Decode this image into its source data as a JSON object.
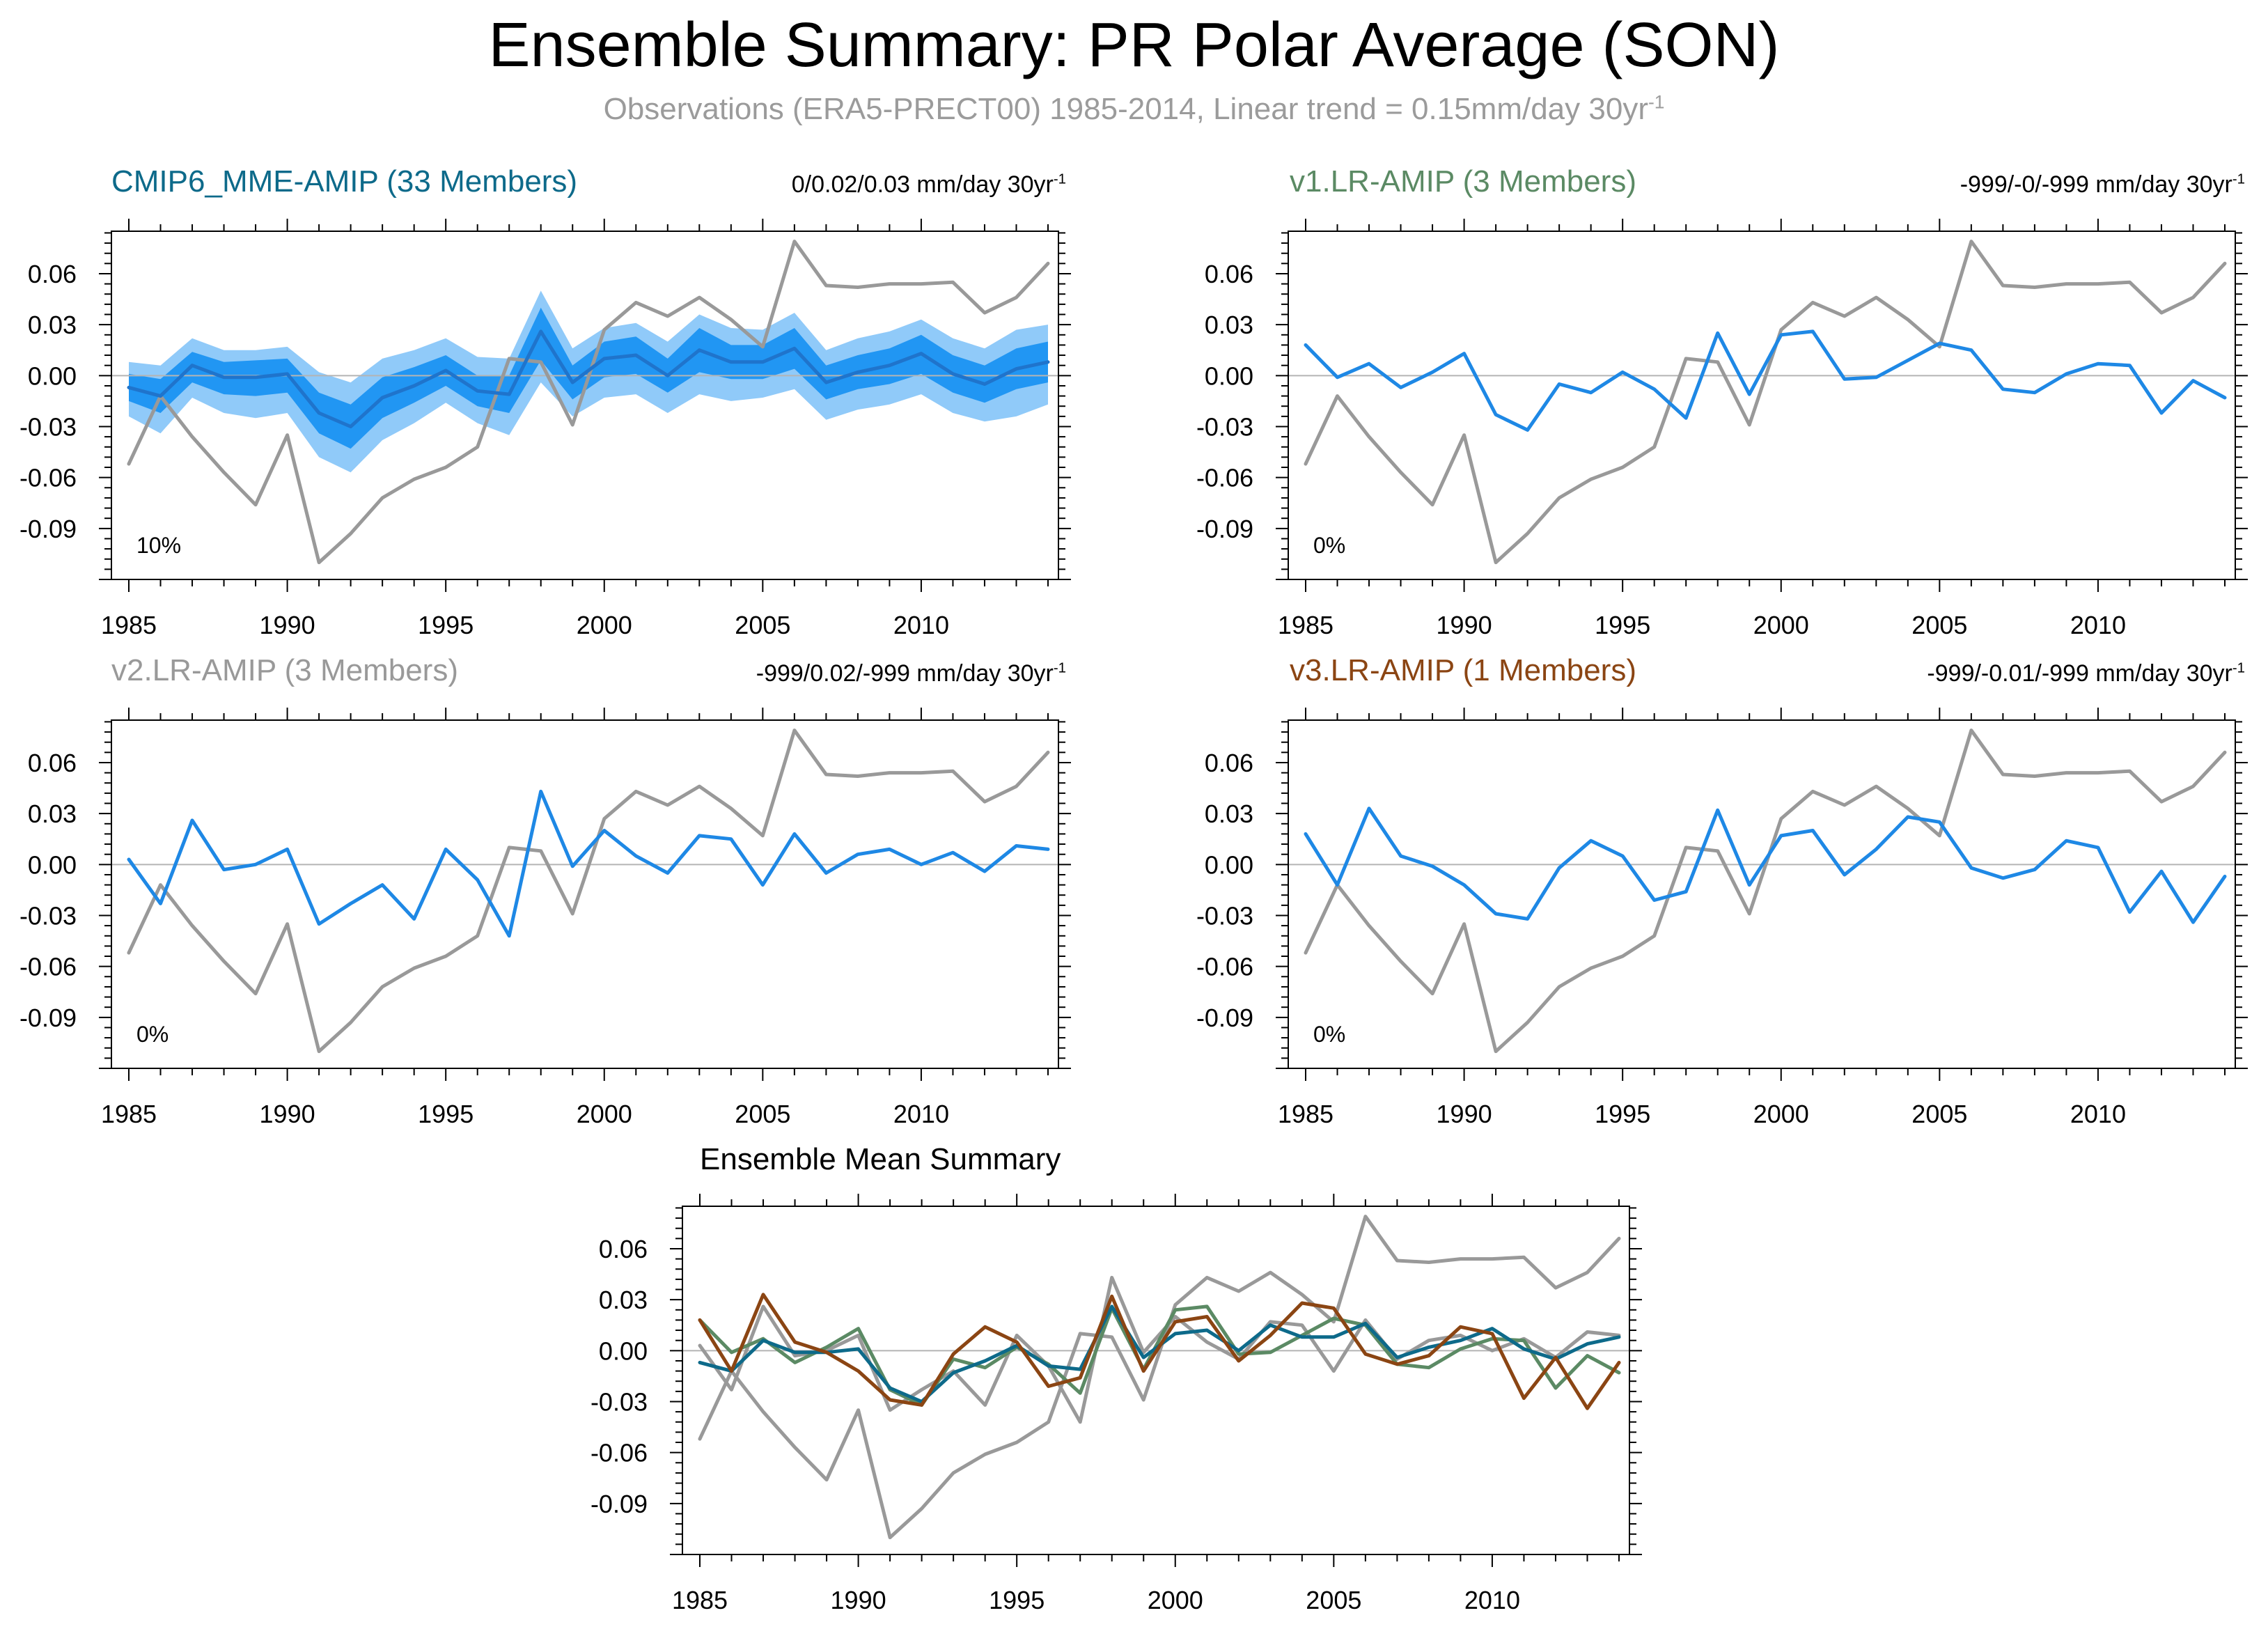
{
  "title": "Ensemble Summary: PR Polar Average (SON)",
  "subtitle": {
    "text": "Observations (ERA5-PRECT00) 1985-2014, Linear trend = 0.15mm/day 30yr",
    "sup": "-1"
  },
  "colors": {
    "obs": "#999999",
    "member": "#1e88e5",
    "ens_mean": "#1f74cc",
    "spread_outer": "#90caf9",
    "spread_inner": "#2196f3",
    "cmip6": "#0d6a8a",
    "v1": "#5b8a64",
    "v2": "#999999",
    "v3": "#8b4513",
    "zero_line": "#b4b4b4",
    "axis": "#000000"
  },
  "panels": [
    {
      "id": "cmip6",
      "title": "CMIP6_MME-AMIP (33 Members)",
      "title_color": "#0d6a8a",
      "trend_text": "0/0.02/0.03 mm/day 30yr",
      "trend_sup": "-1",
      "percent": "10%"
    },
    {
      "id": "v1",
      "title": "v1.LR-AMIP (3 Members)",
      "title_color": "#5b8a64",
      "trend_text": "-999/-0/-999 mm/day 30yr",
      "trend_sup": "-1",
      "percent": "0%"
    },
    {
      "id": "v2",
      "title": "v2.LR-AMIP (3 Members)",
      "title_color": "#999999",
      "trend_text": "-999/0.02/-999 mm/day 30yr",
      "trend_sup": "-1",
      "percent": "0%"
    },
    {
      "id": "v3",
      "title": "v3.LR-AMIP (1 Members)",
      "title_color": "#8b4513",
      "trend_text": "-999/-0.01/-999 mm/day 30yr",
      "trend_sup": "-1",
      "percent": "0%"
    },
    {
      "id": "summary",
      "title": "Ensemble Mean Summary",
      "title_color": "#000000",
      "trend_text": "",
      "trend_sup": "",
      "percent": ""
    }
  ],
  "chart_data": {
    "type": "line",
    "xlim": [
      1985,
      2014
    ],
    "ylim": [
      -0.12,
      0.085
    ],
    "x_ticks": [
      1985,
      1990,
      1995,
      2000,
      2005,
      2010
    ],
    "y_ticks": [
      0.06,
      0.03,
      0.0,
      -0.03,
      -0.06,
      -0.09
    ],
    "y_tick_labels": [
      "0.06",
      "0.03",
      "0.00",
      "-0.03",
      "-0.06",
      "-0.09"
    ],
    "years": [
      1985,
      1986,
      1987,
      1988,
      1989,
      1990,
      1991,
      1992,
      1993,
      1994,
      1995,
      1996,
      1997,
      1998,
      1999,
      2000,
      2001,
      2002,
      2003,
      2004,
      2005,
      2006,
      2007,
      2008,
      2009,
      2010,
      2011,
      2012,
      2013,
      2014
    ],
    "observations": [
      -0.052,
      -0.012,
      -0.036,
      -0.057,
      -0.076,
      -0.035,
      -0.11,
      -0.093,
      -0.072,
      -0.061,
      -0.054,
      -0.042,
      0.01,
      0.008,
      -0.029,
      0.027,
      0.043,
      0.035,
      0.046,
      0.033,
      0.017,
      0.079,
      0.053,
      0.052,
      0.054,
      0.054,
      0.055,
      0.037,
      0.046,
      0.066
    ],
    "cmip6": {
      "mean": [
        -0.007,
        -0.012,
        0.006,
        -0.001,
        -0.001,
        0.001,
        -0.022,
        -0.03,
        -0.013,
        -0.006,
        0.003,
        -0.009,
        -0.011,
        0.026,
        -0.004,
        0.01,
        0.012,
        0.0,
        0.015,
        0.008,
        0.008,
        0.016,
        -0.004,
        0.002,
        0.006,
        0.013,
        0.001,
        -0.005,
        0.004,
        0.008
      ],
      "inner_lo": [
        -0.015,
        -0.022,
        -0.004,
        -0.011,
        -0.012,
        -0.01,
        -0.034,
        -0.043,
        -0.025,
        -0.016,
        -0.006,
        -0.018,
        -0.022,
        0.009,
        -0.014,
        -0.001,
        0.001,
        -0.01,
        0.002,
        -0.002,
        -0.002,
        0.004,
        -0.014,
        -0.008,
        -0.005,
        0.001,
        -0.01,
        -0.016,
        -0.008,
        -0.004
      ],
      "inner_hi": [
        0.001,
        -0.002,
        0.014,
        0.008,
        0.009,
        0.01,
        -0.01,
        -0.017,
        -0.001,
        0.005,
        0.012,
        0.0,
        0.0,
        0.04,
        0.006,
        0.02,
        0.023,
        0.01,
        0.028,
        0.018,
        0.018,
        0.028,
        0.006,
        0.012,
        0.016,
        0.024,
        0.012,
        0.006,
        0.016,
        0.02
      ],
      "outer_lo": [
        -0.024,
        -0.034,
        -0.013,
        -0.022,
        -0.025,
        -0.022,
        -0.048,
        -0.057,
        -0.038,
        -0.028,
        -0.016,
        -0.028,
        -0.035,
        -0.004,
        -0.024,
        -0.013,
        -0.011,
        -0.022,
        -0.011,
        -0.015,
        -0.013,
        -0.008,
        -0.026,
        -0.02,
        -0.017,
        -0.011,
        -0.022,
        -0.027,
        -0.024,
        -0.017
      ],
      "outer_hi": [
        0.008,
        0.006,
        0.022,
        0.015,
        0.015,
        0.017,
        0.002,
        -0.004,
        0.01,
        0.015,
        0.022,
        0.011,
        0.01,
        0.05,
        0.016,
        0.028,
        0.031,
        0.02,
        0.036,
        0.028,
        0.027,
        0.037,
        0.015,
        0.022,
        0.026,
        0.033,
        0.022,
        0.016,
        0.027,
        0.03
      ]
    },
    "v1": [
      0.018,
      -0.001,
      0.007,
      -0.007,
      0.002,
      0.013,
      -0.023,
      -0.032,
      -0.005,
      -0.01,
      0.002,
      -0.008,
      -0.025,
      0.025,
      -0.011,
      0.024,
      0.026,
      -0.002,
      -0.001,
      0.009,
      0.019,
      0.015,
      -0.008,
      -0.01,
      0.001,
      0.007,
      0.006,
      -0.022,
      -0.003,
      -0.013
    ],
    "v2": [
      0.003,
      -0.023,
      0.026,
      -0.003,
      0.0,
      0.009,
      -0.035,
      -0.023,
      -0.012,
      -0.032,
      0.009,
      -0.009,
      -0.042,
      0.043,
      -0.001,
      0.02,
      0.005,
      -0.005,
      0.017,
      0.015,
      -0.012,
      0.018,
      -0.005,
      0.006,
      0.009,
      0.0,
      0.007,
      -0.004,
      0.011,
      0.009
    ],
    "v3": [
      0.018,
      -0.012,
      0.033,
      0.005,
      -0.001,
      -0.012,
      -0.029,
      -0.032,
      -0.002,
      0.014,
      0.005,
      -0.021,
      -0.016,
      0.032,
      -0.012,
      0.017,
      0.02,
      -0.006,
      0.009,
      0.028,
      0.025,
      -0.002,
      -0.008,
      -0.003,
      0.014,
      0.01,
      -0.028,
      -0.004,
      -0.034,
      -0.007
    ]
  }
}
